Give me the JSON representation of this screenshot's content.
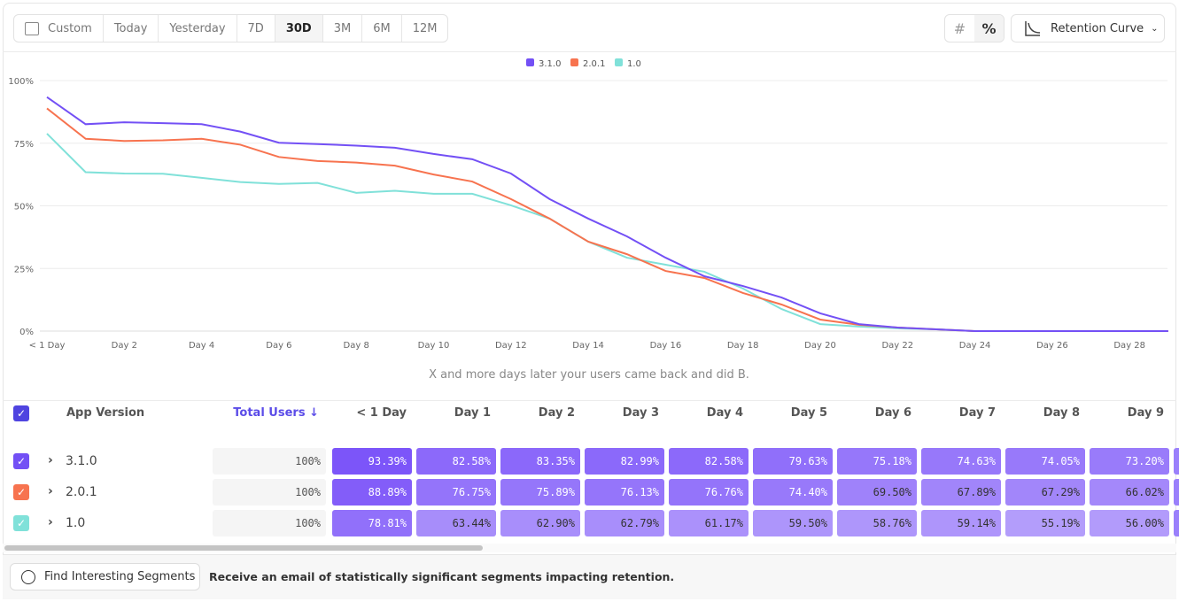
{
  "toolbar": {
    "ranges": [
      "Custom",
      "Today",
      "Yesterday",
      "7D",
      "30D",
      "3M",
      "6M",
      "12M"
    ],
    "active_range": "30D",
    "count_icon": "#",
    "percent_icon": "%",
    "view_select": "Retention Curve"
  },
  "chart_data": {
    "type": "line",
    "ylim": [
      0,
      100
    ],
    "yticks": [
      "0%",
      "25%",
      "50%",
      "75%",
      "100%"
    ],
    "xticks": [
      "< 1 Day",
      "Day 2",
      "Day 4",
      "Day 6",
      "Day 8",
      "Day 10",
      "Day 12",
      "Day 14",
      "Day 16",
      "Day 18",
      "Day 20",
      "Day 22",
      "Day 24",
      "Day 26",
      "Day 28"
    ],
    "xlabel": "X and more days later your users came back and did B.",
    "legend": "top-center",
    "grid": true,
    "series": [
      {
        "name": "3.1.0",
        "color": "#7350f5",
        "values": [
          93.39,
          82.58,
          83.35,
          82.99,
          82.58,
          79.63,
          75.18,
          74.63,
          74.05,
          73.2,
          70.7,
          68.6,
          62.9,
          52.7,
          44.9,
          37.8,
          29.3,
          21.9,
          18.0,
          13.4,
          7.1,
          2.8,
          1.4,
          0.7,
          0,
          0,
          0,
          0,
          0,
          0
        ]
      },
      {
        "name": "2.0.1",
        "color": "#f7734f",
        "values": [
          88.89,
          76.75,
          75.89,
          76.13,
          76.76,
          74.4,
          69.5,
          67.89,
          67.29,
          66.02,
          62.5,
          59.7,
          52.7,
          44.9,
          35.7,
          30.7,
          24.0,
          21.2,
          15.2,
          10.6,
          4.6,
          2.5,
          1.4,
          0.7,
          0,
          0,
          0,
          0,
          0,
          0
        ]
      },
      {
        "name": "1.0",
        "color": "#80e1d9",
        "values": [
          78.81,
          63.44,
          62.9,
          62.79,
          61.17,
          59.5,
          58.76,
          59.14,
          55.19,
          56.0,
          54.8,
          54.8,
          50.2,
          44.9,
          35.7,
          29.3,
          26.5,
          23.7,
          17.0,
          8.8,
          2.8,
          1.8,
          1.1,
          0.7,
          0,
          0,
          0,
          0,
          0,
          0
        ]
      }
    ]
  },
  "table": {
    "headers": {
      "group": "App Version",
      "total": "Total Users ↓",
      "days": [
        "< 1 Day",
        "Day 1",
        "Day 2",
        "Day 3",
        "Day 4",
        "Day 5",
        "Day 6",
        "Day 7",
        "Day 8",
        "Day 9"
      ]
    },
    "rows": [
      {
        "label": "3.1.0",
        "color": "#7350f5",
        "total": "100%",
        "cells": [
          "93.39%",
          "82.58%",
          "83.35%",
          "82.99%",
          "82.58%",
          "79.63%",
          "75.18%",
          "74.63%",
          "74.05%",
          "73.20%"
        ]
      },
      {
        "label": "2.0.1",
        "color": "#f7734f",
        "total": "100%",
        "cells": [
          "88.89%",
          "76.75%",
          "75.89%",
          "76.13%",
          "76.76%",
          "74.40%",
          "69.50%",
          "67.89%",
          "67.29%",
          "66.02%"
        ]
      },
      {
        "label": "1.0",
        "color": "#80e1d9",
        "total": "100%",
        "cells": [
          "78.81%",
          "63.44%",
          "62.90%",
          "62.79%",
          "61.17%",
          "59.50%",
          "58.76%",
          "59.14%",
          "55.19%",
          "56.00%"
        ]
      }
    ]
  },
  "footer": {
    "button": "Find Interesting Segments",
    "message": "Receive an email of statistically significant segments impacting retention."
  }
}
